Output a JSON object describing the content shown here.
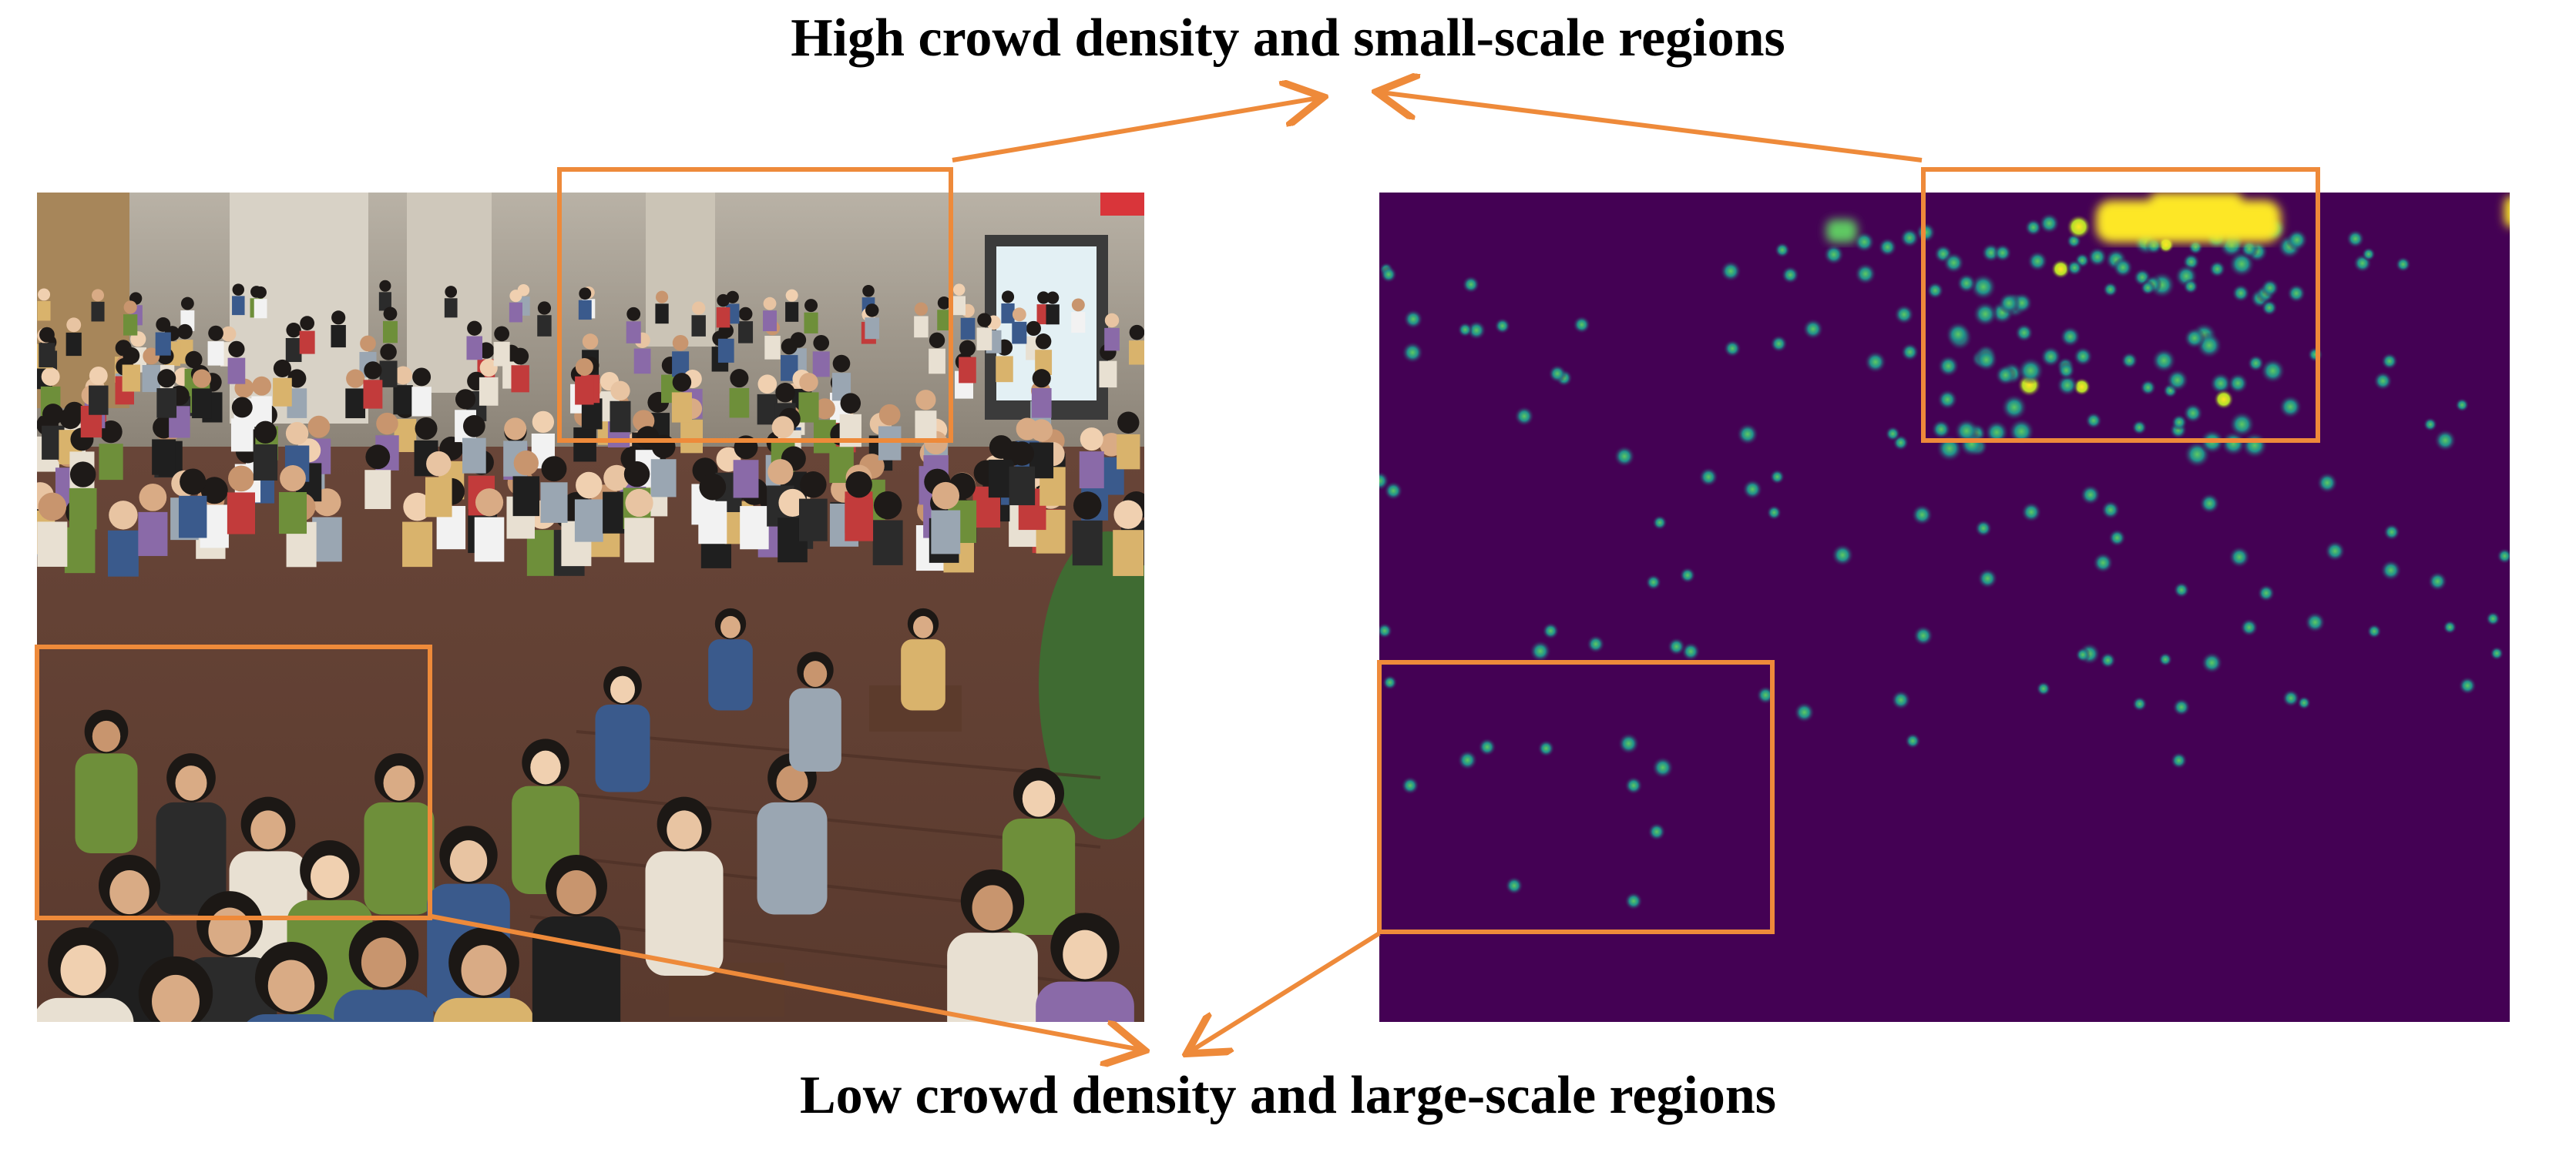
{
  "captions": {
    "top": "High crowd density and small-scale regions",
    "bottom": "Low crowd density and large-scale regions"
  },
  "colors": {
    "highlight_box": "#EE8A3A",
    "arrow": "#EE8A3A",
    "density_background": "#440154",
    "density_low": "#31688E",
    "density_mid": "#35B779",
    "density_high": "#FDE725"
  },
  "images": {
    "left": "crowd-photo",
    "right": "density-map"
  }
}
